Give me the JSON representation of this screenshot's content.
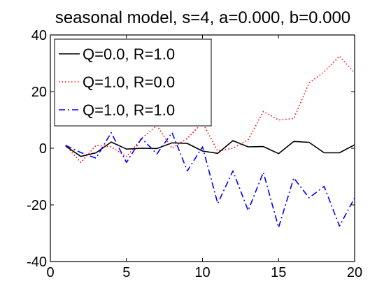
{
  "chart_data": {
    "type": "line",
    "title": "seasonal model, s=4, a=0.000, b=0.000",
    "xlabel": "",
    "ylabel": "",
    "xlim": [
      0,
      20
    ],
    "ylim": [
      -40,
      40
    ],
    "x_ticks": [
      0,
      5,
      10,
      15,
      20
    ],
    "y_ticks": [
      -40,
      -20,
      0,
      20,
      40
    ],
    "grid": false,
    "legend_position": "top-left",
    "x": [
      1,
      2,
      3,
      4,
      5,
      6,
      7,
      8,
      9,
      10,
      11,
      12,
      13,
      14,
      15,
      16,
      17,
      18,
      19,
      20
    ],
    "series": [
      {
        "name": "Q=0.0, R=1.0",
        "color": "#000000",
        "style": "solid",
        "values": [
          0.8,
          -2.9,
          -1.6,
          2.2,
          -0.3,
          0,
          -0.1,
          1.9,
          1.7,
          -1.0,
          -1.8,
          2.7,
          0.5,
          0.6,
          -1.9,
          2.4,
          2.1,
          -1.6,
          -1.6,
          1.2
        ]
      },
      {
        "name": "Q=1.0, R=0.0",
        "color": "#ff0000",
        "style": "dotted",
        "values": [
          1.0,
          -5.0,
          1.0,
          0.5,
          -3.0,
          3.5,
          8.0,
          0,
          3.5,
          9.0,
          -1.0,
          0,
          3.0,
          13.0,
          10.0,
          10.5,
          23.0,
          27.0,
          32.5,
          26.5
        ]
      },
      {
        "name": "Q=1.0, R=1.0",
        "color": "#0000ff",
        "style": "dashdot",
        "values": [
          1.0,
          -1.5,
          -3.5,
          5.5,
          -5.0,
          3.5,
          -2.0,
          5.5,
          -8.0,
          0.5,
          -19.5,
          -8.0,
          -22.0,
          -8.5,
          -28.0,
          -10.5,
          -17.5,
          -13.5,
          -27.5,
          -17.5
        ]
      }
    ]
  }
}
